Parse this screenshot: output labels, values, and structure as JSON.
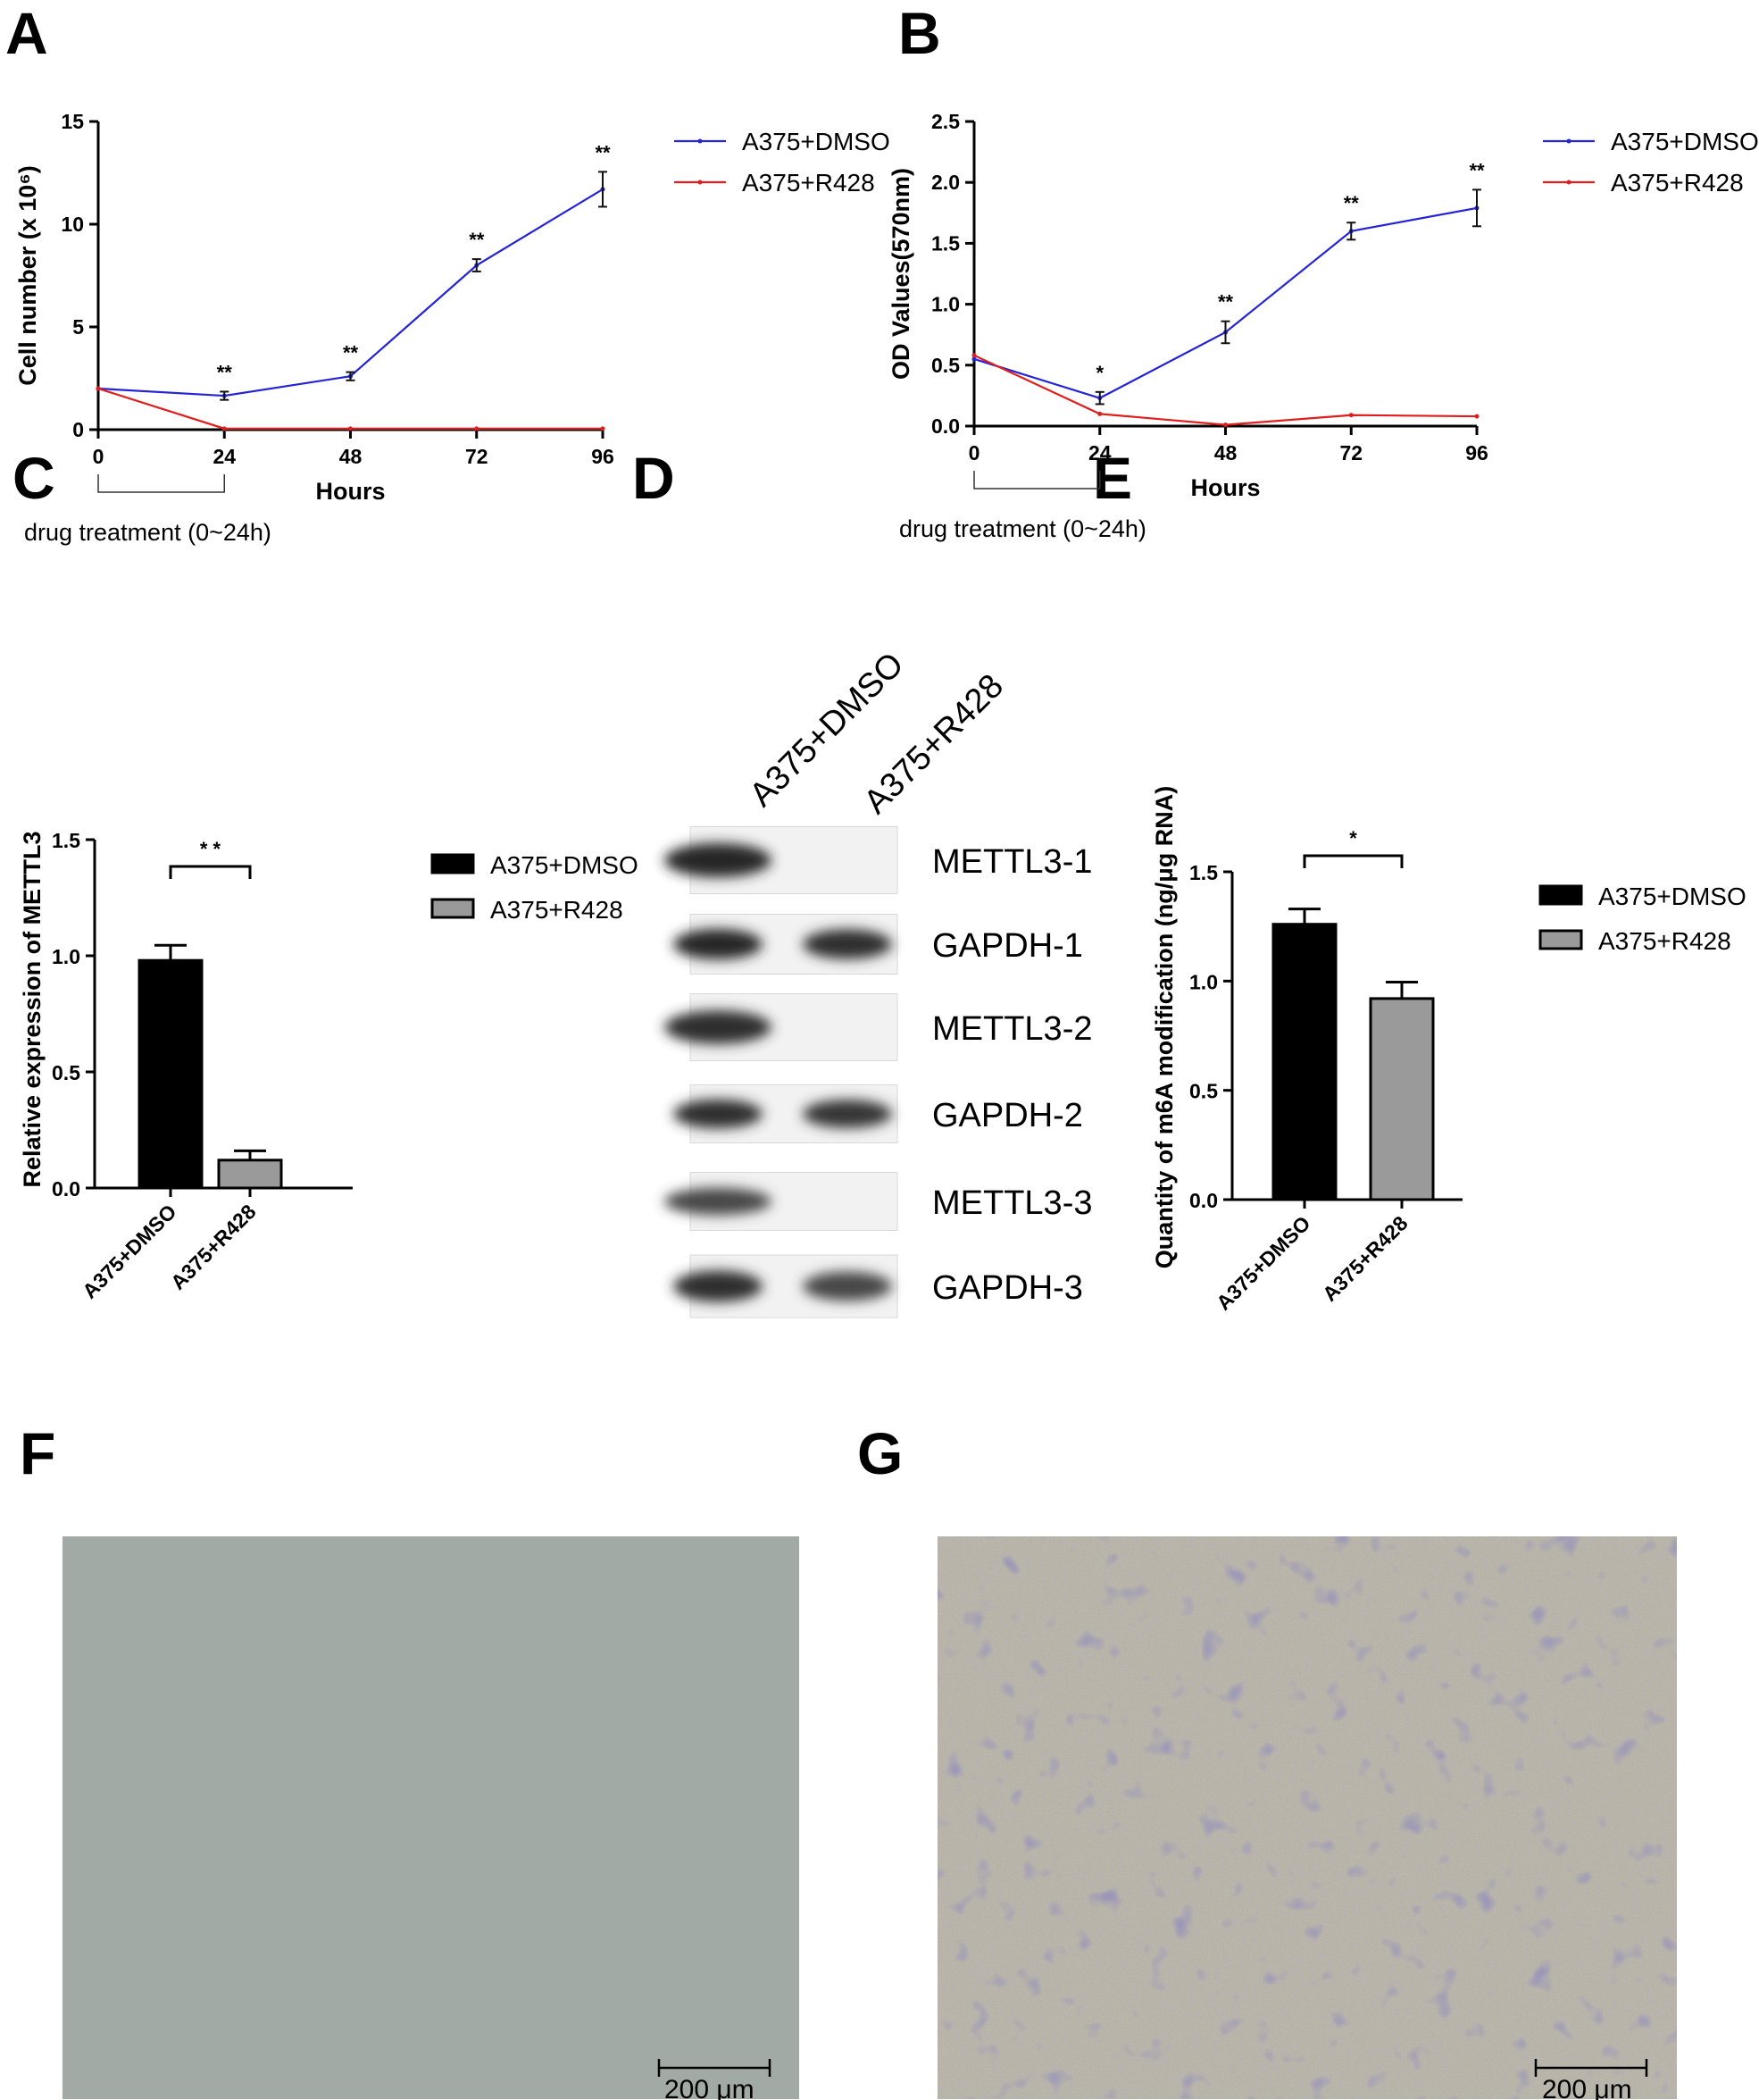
{
  "panels": {
    "A": "A",
    "B": "B",
    "C": "C",
    "D": "D",
    "E": "E",
    "F": "F",
    "G": "G"
  },
  "chart_data": [
    {
      "id": "A",
      "type": "line",
      "ylabel": "Cell number (x 10⁶)",
      "xlabel": "Hours",
      "x": [
        0,
        24,
        48,
        72,
        96
      ],
      "xticks": [
        "0",
        "24",
        "48",
        "72",
        "96"
      ],
      "yticks": [
        "0",
        "5",
        "10",
        "15"
      ],
      "ylim": [
        0,
        15
      ],
      "series": [
        {
          "name": "A375+DMSO",
          "color": "#2424d6",
          "values": [
            2.0,
            1.65,
            2.6,
            8.0,
            11.7
          ],
          "errors": [
            0,
            0.2,
            0.2,
            0.3,
            0.85
          ]
        },
        {
          "name": "A375+R428",
          "color": "#e01e1e",
          "values": [
            2.0,
            0.05,
            0.05,
            0.05,
            0.05
          ],
          "errors": [
            0,
            0,
            0,
            0,
            0
          ]
        }
      ],
      "significance": [
        {
          "x": 24,
          "label": "**"
        },
        {
          "x": 48,
          "label": "**"
        },
        {
          "x": 72,
          "label": "**"
        },
        {
          "x": 96,
          "label": "**"
        }
      ],
      "note": "drug treatment (0~24h)"
    },
    {
      "id": "B",
      "type": "line",
      "ylabel": "OD Values(570nm)",
      "xlabel": "Hours",
      "x": [
        0,
        24,
        48,
        72,
        96
      ],
      "xticks": [
        "0",
        "24",
        "48",
        "72",
        "96"
      ],
      "yticks": [
        "0.0",
        "0.5",
        "1.0",
        "1.5",
        "2.0",
        "2.5"
      ],
      "ylim": [
        0,
        2.5
      ],
      "series": [
        {
          "name": "A375+DMSO",
          "color": "#2424d6",
          "values": [
            0.55,
            0.23,
            0.77,
            1.6,
            1.79
          ],
          "errors": [
            0,
            0.05,
            0.09,
            0.07,
            0.15
          ]
        },
        {
          "name": "A375+R428",
          "color": "#e01e1e",
          "values": [
            0.58,
            0.1,
            0.01,
            0.09,
            0.08
          ],
          "errors": [
            0,
            0,
            0,
            0,
            0
          ]
        }
      ],
      "significance": [
        {
          "x": 24,
          "label": "*"
        },
        {
          "x": 48,
          "label": "**"
        },
        {
          "x": 72,
          "label": "**"
        },
        {
          "x": 96,
          "label": "**"
        }
      ],
      "note": "drug treatment (0~24h)"
    },
    {
      "id": "C",
      "type": "bar",
      "ylabel": "Relative expression of METTL3",
      "categories": [
        "A375+DMSO",
        "A375+R428"
      ],
      "values": [
        0.98,
        0.12
      ],
      "errors": [
        0.065,
        0.04
      ],
      "colors": [
        "#000000",
        "#9a9a9a"
      ],
      "yticks": [
        "0.0",
        "0.5",
        "1.0",
        "1.5"
      ],
      "ylim": [
        0,
        1.5
      ],
      "significance": "* *",
      "legend": [
        "A375+DMSO",
        "A375+R428"
      ]
    },
    {
      "id": "E",
      "type": "bar",
      "ylabel": "Quantity of m6A modification (ng/μg RNA)",
      "categories": [
        "A375+DMSO",
        "A375+R428"
      ],
      "values": [
        1.26,
        0.92
      ],
      "errors": [
        0.07,
        0.075
      ],
      "colors": [
        "#000000",
        "#9a9a9a"
      ],
      "yticks": [
        "0.0",
        "0.5",
        "1.0",
        "1.5"
      ],
      "ylim": [
        0,
        1.5
      ],
      "significance": "*",
      "legend": [
        "A375+DMSO",
        "A375+R428"
      ]
    }
  ],
  "blot": {
    "lanes": [
      "A375+DMSO",
      "A375+R428"
    ],
    "rows": [
      {
        "label": "METTL3-1",
        "intensity": [
          0.95,
          0.0
        ]
      },
      {
        "label": "GAPDH-1",
        "intensity": [
          0.95,
          0.9
        ]
      },
      {
        "label": "METTL3-2",
        "intensity": [
          0.9,
          0.0
        ]
      },
      {
        "label": "GAPDH-2",
        "intensity": [
          0.9,
          0.85
        ]
      },
      {
        "label": "METTL3-3",
        "intensity": [
          0.75,
          0.0
        ]
      },
      {
        "label": "GAPDH-3",
        "intensity": [
          0.9,
          0.75
        ]
      }
    ]
  },
  "micrographs": [
    {
      "id": "F",
      "scale_bar": "200 μm",
      "tone": "#9ea49d"
    },
    {
      "id": "G",
      "scale_bar": "200 μm",
      "tone": "#b7b49f"
    }
  ]
}
